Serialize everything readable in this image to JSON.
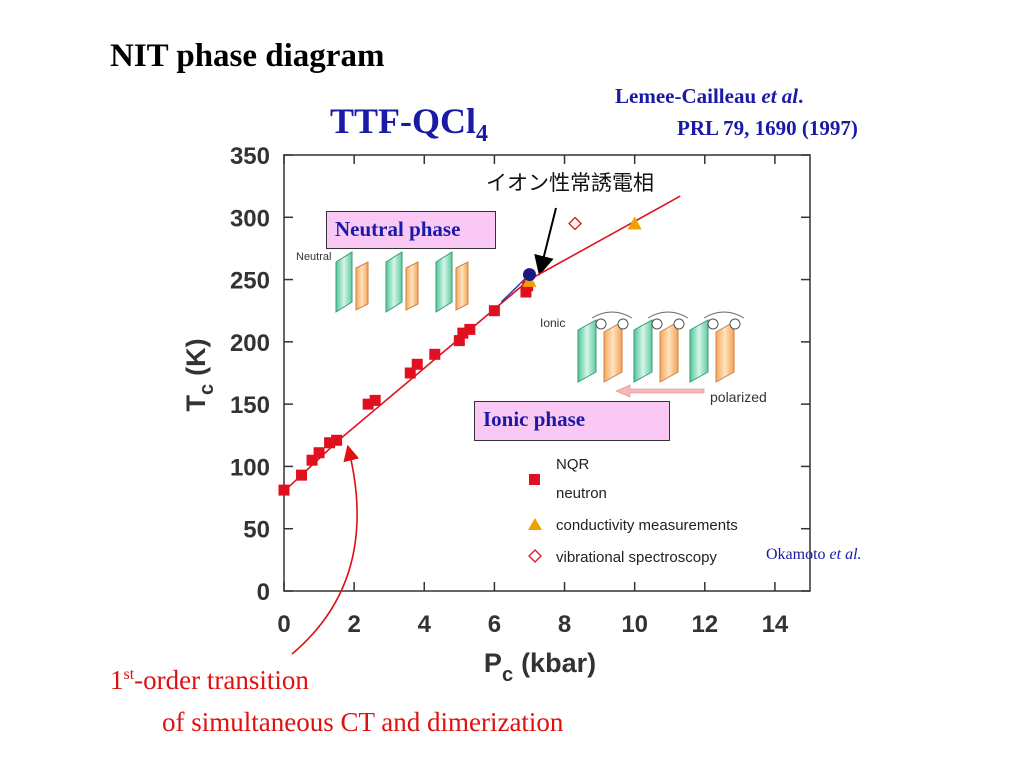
{
  "slide": {
    "title": "NIT phase diagram",
    "compound_main": "TTF-QCl",
    "compound_sub": "4",
    "reference_author": "Lemee-Cailleau ",
    "reference_etal": "et al",
    "reference_dot": ".",
    "reference_journal": "PRL 79, 1690 (1997)",
    "okamoto_author": "Okamoto ",
    "okamoto_etal": "et al.",
    "transition_line1_pre": "1",
    "transition_line1_sup": "st",
    "transition_line1_post": "-order transition",
    "transition_line2": "of simultaneous CT and dimerization",
    "neutral_phase_label": "Neutral phase",
    "ionic_phase_label": "Ionic phase",
    "japanese_annotation": "イオン性常誘電相",
    "neutral_small_label": "Neutral",
    "ionic_small_label": "Ionic",
    "polarized_label": "polarized"
  },
  "colors": {
    "title_blue": "#1a1aa6",
    "data_red": "#e01020",
    "triangle_orange": "#f0a000",
    "circle_navy": "#1a1a80",
    "phase_box_pink": "#f9c8f4",
    "annotation_red": "#e01010"
  },
  "chart_data": {
    "type": "scatter",
    "xlabel_main": "P",
    "xlabel_sub": "c",
    "xlabel_unit": "(kbar)",
    "ylabel_main": "T",
    "ylabel_sub": "c",
    "ylabel_unit": "(K)",
    "xlim": [
      0,
      15
    ],
    "ylim": [
      0,
      350
    ],
    "xticks": [
      0,
      2,
      4,
      6,
      8,
      10,
      12,
      14
    ],
    "yticks": [
      0,
      50,
      100,
      150,
      200,
      250,
      300,
      350
    ],
    "grid": false,
    "legend_position": "bottom-right",
    "series": [
      {
        "name": "NQR neutron",
        "marker": "square",
        "color": "#e01020",
        "points": [
          [
            0,
            81
          ],
          [
            0.5,
            93
          ],
          [
            0.8,
            105
          ],
          [
            1.0,
            111
          ],
          [
            1.3,
            119
          ],
          [
            1.5,
            121
          ],
          [
            2.4,
            150
          ],
          [
            2.6,
            153
          ],
          [
            3.6,
            175
          ],
          [
            3.8,
            182
          ],
          [
            4.3,
            190
          ],
          [
            5.0,
            201
          ],
          [
            5.1,
            207
          ],
          [
            5.3,
            210
          ],
          [
            6.0,
            225
          ],
          [
            6.9,
            240
          ],
          [
            6.95,
            245
          ]
        ]
      },
      {
        "name": "conductivity measurements",
        "marker": "triangle",
        "color": "#f0a000",
        "points": [
          [
            7.0,
            249
          ],
          [
            10.0,
            295
          ]
        ]
      },
      {
        "name": "vibrational spectroscopy",
        "marker": "diamond-open",
        "color": "#e01020",
        "points": [
          [
            8.3,
            295
          ]
        ]
      },
      {
        "name": "",
        "marker": "circle",
        "color": "#1a1a80",
        "points": [
          [
            7.0,
            254
          ]
        ]
      }
    ],
    "fit_line": [
      [
        0,
        80
      ],
      [
        1.6,
        122
      ],
      [
        7.0,
        250
      ],
      [
        11.3,
        317
      ]
    ],
    "blue_segment": [
      [
        6.2,
        232
      ],
      [
        7.0,
        254
      ]
    ],
    "legend_entries": [
      {
        "marker": "",
        "label": "NQR"
      },
      {
        "marker": "square",
        "label": "neutron"
      },
      {
        "marker": "triangle",
        "label": "conductivity measurements"
      },
      {
        "marker": "diamond-open",
        "label": "vibrational spectroscopy"
      }
    ]
  }
}
